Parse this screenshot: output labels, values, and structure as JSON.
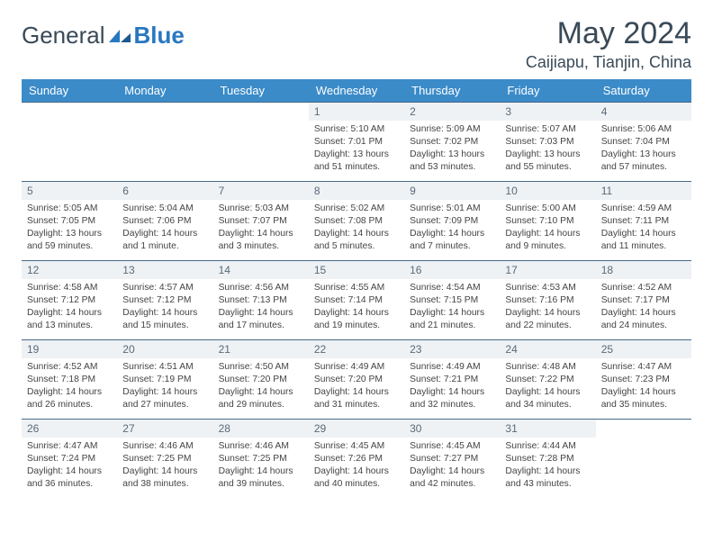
{
  "logo": {
    "part1": "General",
    "part2": "Blue"
  },
  "title": "May 2024",
  "location": "Caijiapu, Tianjin, China",
  "colors": {
    "header_bg": "#3b8bc8",
    "header_text": "#ffffff",
    "daynum_bg": "#eef2f5",
    "daynum_text": "#5a6a78",
    "row_border": "#4a6a88",
    "title_color": "#3a4a58",
    "body_text": "#444444",
    "logo_accent": "#2878c0"
  },
  "typography": {
    "title_fontsize": 34,
    "location_fontsize": 18,
    "weekday_fontsize": 13,
    "cell_fontsize": 10.3,
    "daynum_fontsize": 12
  },
  "weekdays": [
    "Sunday",
    "Monday",
    "Tuesday",
    "Wednesday",
    "Thursday",
    "Friday",
    "Saturday"
  ],
  "weeks": [
    [
      {
        "day": "",
        "sunrise": "",
        "sunset": "",
        "daylight": ""
      },
      {
        "day": "",
        "sunrise": "",
        "sunset": "",
        "daylight": ""
      },
      {
        "day": "",
        "sunrise": "",
        "sunset": "",
        "daylight": ""
      },
      {
        "day": "1",
        "sunrise": "Sunrise: 5:10 AM",
        "sunset": "Sunset: 7:01 PM",
        "daylight": "Daylight: 13 hours and 51 minutes."
      },
      {
        "day": "2",
        "sunrise": "Sunrise: 5:09 AM",
        "sunset": "Sunset: 7:02 PM",
        "daylight": "Daylight: 13 hours and 53 minutes."
      },
      {
        "day": "3",
        "sunrise": "Sunrise: 5:07 AM",
        "sunset": "Sunset: 7:03 PM",
        "daylight": "Daylight: 13 hours and 55 minutes."
      },
      {
        "day": "4",
        "sunrise": "Sunrise: 5:06 AM",
        "sunset": "Sunset: 7:04 PM",
        "daylight": "Daylight: 13 hours and 57 minutes."
      }
    ],
    [
      {
        "day": "5",
        "sunrise": "Sunrise: 5:05 AM",
        "sunset": "Sunset: 7:05 PM",
        "daylight": "Daylight: 13 hours and 59 minutes."
      },
      {
        "day": "6",
        "sunrise": "Sunrise: 5:04 AM",
        "sunset": "Sunset: 7:06 PM",
        "daylight": "Daylight: 14 hours and 1 minute."
      },
      {
        "day": "7",
        "sunrise": "Sunrise: 5:03 AM",
        "sunset": "Sunset: 7:07 PM",
        "daylight": "Daylight: 14 hours and 3 minutes."
      },
      {
        "day": "8",
        "sunrise": "Sunrise: 5:02 AM",
        "sunset": "Sunset: 7:08 PM",
        "daylight": "Daylight: 14 hours and 5 minutes."
      },
      {
        "day": "9",
        "sunrise": "Sunrise: 5:01 AM",
        "sunset": "Sunset: 7:09 PM",
        "daylight": "Daylight: 14 hours and 7 minutes."
      },
      {
        "day": "10",
        "sunrise": "Sunrise: 5:00 AM",
        "sunset": "Sunset: 7:10 PM",
        "daylight": "Daylight: 14 hours and 9 minutes."
      },
      {
        "day": "11",
        "sunrise": "Sunrise: 4:59 AM",
        "sunset": "Sunset: 7:11 PM",
        "daylight": "Daylight: 14 hours and 11 minutes."
      }
    ],
    [
      {
        "day": "12",
        "sunrise": "Sunrise: 4:58 AM",
        "sunset": "Sunset: 7:12 PM",
        "daylight": "Daylight: 14 hours and 13 minutes."
      },
      {
        "day": "13",
        "sunrise": "Sunrise: 4:57 AM",
        "sunset": "Sunset: 7:12 PM",
        "daylight": "Daylight: 14 hours and 15 minutes."
      },
      {
        "day": "14",
        "sunrise": "Sunrise: 4:56 AM",
        "sunset": "Sunset: 7:13 PM",
        "daylight": "Daylight: 14 hours and 17 minutes."
      },
      {
        "day": "15",
        "sunrise": "Sunrise: 4:55 AM",
        "sunset": "Sunset: 7:14 PM",
        "daylight": "Daylight: 14 hours and 19 minutes."
      },
      {
        "day": "16",
        "sunrise": "Sunrise: 4:54 AM",
        "sunset": "Sunset: 7:15 PM",
        "daylight": "Daylight: 14 hours and 21 minutes."
      },
      {
        "day": "17",
        "sunrise": "Sunrise: 4:53 AM",
        "sunset": "Sunset: 7:16 PM",
        "daylight": "Daylight: 14 hours and 22 minutes."
      },
      {
        "day": "18",
        "sunrise": "Sunrise: 4:52 AM",
        "sunset": "Sunset: 7:17 PM",
        "daylight": "Daylight: 14 hours and 24 minutes."
      }
    ],
    [
      {
        "day": "19",
        "sunrise": "Sunrise: 4:52 AM",
        "sunset": "Sunset: 7:18 PM",
        "daylight": "Daylight: 14 hours and 26 minutes."
      },
      {
        "day": "20",
        "sunrise": "Sunrise: 4:51 AM",
        "sunset": "Sunset: 7:19 PM",
        "daylight": "Daylight: 14 hours and 27 minutes."
      },
      {
        "day": "21",
        "sunrise": "Sunrise: 4:50 AM",
        "sunset": "Sunset: 7:20 PM",
        "daylight": "Daylight: 14 hours and 29 minutes."
      },
      {
        "day": "22",
        "sunrise": "Sunrise: 4:49 AM",
        "sunset": "Sunset: 7:20 PM",
        "daylight": "Daylight: 14 hours and 31 minutes."
      },
      {
        "day": "23",
        "sunrise": "Sunrise: 4:49 AM",
        "sunset": "Sunset: 7:21 PM",
        "daylight": "Daylight: 14 hours and 32 minutes."
      },
      {
        "day": "24",
        "sunrise": "Sunrise: 4:48 AM",
        "sunset": "Sunset: 7:22 PM",
        "daylight": "Daylight: 14 hours and 34 minutes."
      },
      {
        "day": "25",
        "sunrise": "Sunrise: 4:47 AM",
        "sunset": "Sunset: 7:23 PM",
        "daylight": "Daylight: 14 hours and 35 minutes."
      }
    ],
    [
      {
        "day": "26",
        "sunrise": "Sunrise: 4:47 AM",
        "sunset": "Sunset: 7:24 PM",
        "daylight": "Daylight: 14 hours and 36 minutes."
      },
      {
        "day": "27",
        "sunrise": "Sunrise: 4:46 AM",
        "sunset": "Sunset: 7:25 PM",
        "daylight": "Daylight: 14 hours and 38 minutes."
      },
      {
        "day": "28",
        "sunrise": "Sunrise: 4:46 AM",
        "sunset": "Sunset: 7:25 PM",
        "daylight": "Daylight: 14 hours and 39 minutes."
      },
      {
        "day": "29",
        "sunrise": "Sunrise: 4:45 AM",
        "sunset": "Sunset: 7:26 PM",
        "daylight": "Daylight: 14 hours and 40 minutes."
      },
      {
        "day": "30",
        "sunrise": "Sunrise: 4:45 AM",
        "sunset": "Sunset: 7:27 PM",
        "daylight": "Daylight: 14 hours and 42 minutes."
      },
      {
        "day": "31",
        "sunrise": "Sunrise: 4:44 AM",
        "sunset": "Sunset: 7:28 PM",
        "daylight": "Daylight: 14 hours and 43 minutes."
      },
      {
        "day": "",
        "sunrise": "",
        "sunset": "",
        "daylight": ""
      }
    ]
  ]
}
